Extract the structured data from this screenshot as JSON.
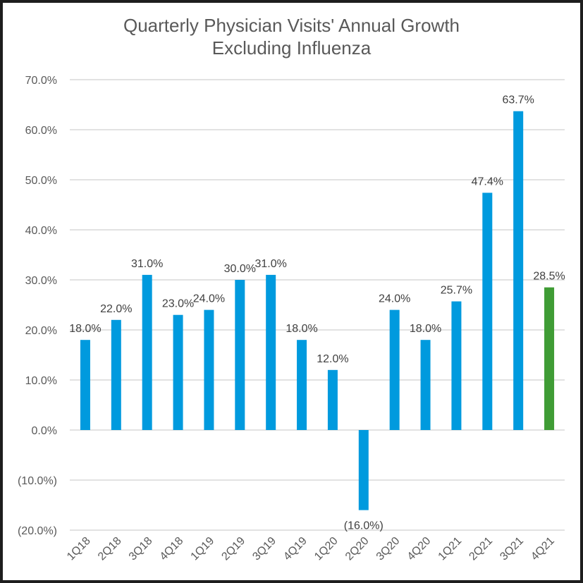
{
  "chart_data": {
    "type": "bar",
    "title": "Quarterly Physician Visits' Annual Growth",
    "subtitle": "Excluding Influenza",
    "xlabel": "",
    "ylabel": "",
    "ylim": [
      -20,
      70
    ],
    "yticks": [
      70,
      60,
      50,
      40,
      30,
      20,
      10,
      0,
      -10,
      -20
    ],
    "ytick_labels": [
      "70.0%",
      "60.0%",
      "50.0%",
      "40.0%",
      "30.0%",
      "20.0%",
      "10.0%",
      "0.0%",
      "(10.0%)",
      "(20.0%)"
    ],
    "grid": true,
    "legend": "none",
    "categories": [
      "1Q18",
      "2Q18",
      "3Q18",
      "4Q18",
      "1Q19",
      "2Q19",
      "3Q19",
      "4Q19",
      "1Q20",
      "2Q20",
      "3Q20",
      "4Q20",
      "1Q21",
      "2Q21",
      "3Q21",
      "4Q21"
    ],
    "values": [
      18.0,
      22.0,
      31.0,
      23.0,
      24.0,
      30.0,
      31.0,
      18.0,
      12.0,
      -16.0,
      24.0,
      18.0,
      25.7,
      47.4,
      63.7,
      28.5
    ],
    "data_labels": [
      "18.0%",
      "22.0%",
      "31.0%",
      "23.0%",
      "24.0%",
      "30.0%",
      "31.0%",
      "18.0%",
      "12.0%",
      "(16.0%)",
      "24.0%",
      "18.0%",
      "25.7%",
      "47.4%",
      "63.7%",
      "28.5%"
    ],
    "bar_colors": [
      "#009ADE",
      "#009ADE",
      "#009ADE",
      "#009ADE",
      "#009ADE",
      "#009ADE",
      "#009ADE",
      "#009ADE",
      "#009ADE",
      "#009ADE",
      "#009ADE",
      "#009ADE",
      "#009ADE",
      "#009ADE",
      "#009ADE",
      "#3F9C35"
    ],
    "colors": {
      "primary": "#009ADE",
      "highlight": "#3F9C35",
      "gridline": "#D9D9D9",
      "text": "#595959"
    }
  }
}
